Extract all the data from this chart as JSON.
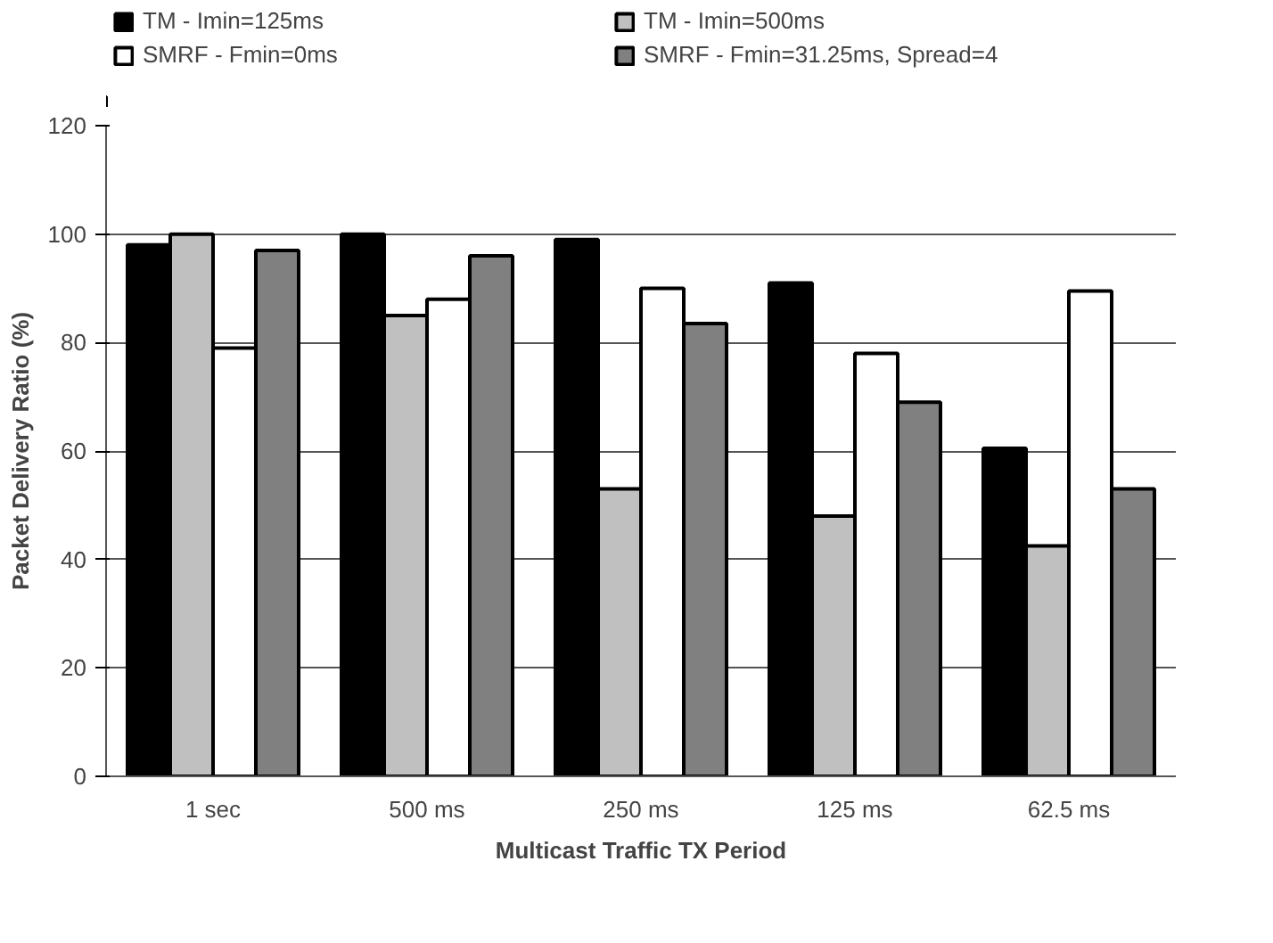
{
  "chart_data": {
    "type": "bar",
    "xlabel": "Multicast Traffic TX Period",
    "ylabel": "Packet Delivery Ratio (%)",
    "categories": [
      "1 sec",
      "500 ms",
      "250 ms",
      "125 ms",
      "62.5 ms"
    ],
    "series": [
      {
        "name": "TM - Imin=125ms",
        "color": "#000000",
        "values": [
          98,
          100,
          99,
          91,
          60.5
        ]
      },
      {
        "name": "TM - Imin=500ms",
        "color": "#c0c0c0",
        "values": [
          100,
          85,
          53,
          48,
          42.5
        ]
      },
      {
        "name": "SMRF - Fmin=0ms",
        "color": "#ffffff",
        "values": [
          79,
          88,
          90,
          78,
          89.5
        ]
      },
      {
        "name": "SMRF - Fmin=31.25ms, Spread=4",
        "color": "#808080",
        "values": [
          97,
          96,
          83.5,
          69,
          53
        ]
      }
    ],
    "ylim": [
      0,
      120
    ],
    "yticks": [
      0,
      20,
      40,
      60,
      80,
      100,
      120
    ],
    "grid": "y",
    "legend": "top"
  }
}
